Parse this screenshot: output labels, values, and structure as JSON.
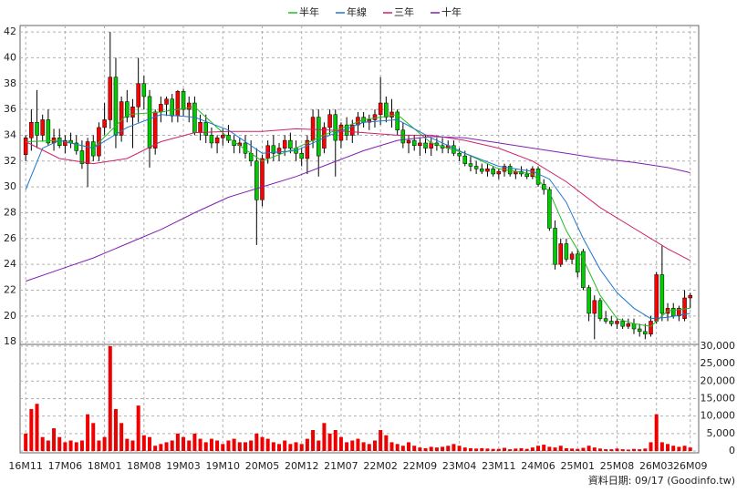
{
  "chart_data": {
    "type": "candlestick",
    "categories": [
      "16M11",
      null,
      null,
      null,
      null,
      null,
      null,
      "17M06",
      null,
      null,
      null,
      null,
      null,
      null,
      "18M01",
      null,
      null,
      null,
      null,
      null,
      null,
      "18M08",
      null,
      null,
      null,
      null,
      null,
      null,
      "19M03",
      null,
      null,
      null,
      null,
      null,
      null,
      "19M10",
      null,
      null,
      null,
      null,
      null,
      null,
      "20M05",
      null,
      null,
      null,
      null,
      null,
      null,
      "20M12",
      null,
      null,
      null,
      null,
      null,
      null,
      "21M07",
      null,
      null,
      null,
      null,
      null,
      null,
      "22M02",
      null,
      null,
      null,
      null,
      null,
      null,
      "22M09",
      null,
      null,
      null,
      null,
      null,
      null,
      "23M04",
      null,
      null,
      null,
      null,
      null,
      null,
      "23M11",
      null,
      null,
      null,
      null,
      null,
      null,
      "24M06",
      null,
      null,
      null,
      null,
      null,
      null,
      "25M01",
      null,
      null,
      null,
      null,
      null,
      null,
      "25M08",
      null,
      null,
      null,
      null,
      null,
      null,
      "26M03",
      null,
      null,
      null,
      null,
      null,
      "26M09"
    ],
    "open": [
      32.5,
      33.8,
      35,
      34,
      35.2,
      33.4,
      33.8,
      33.2,
      33.6,
      33.4,
      32.8,
      31.8,
      33.5,
      32.4,
      34.6,
      35.2,
      38.5,
      34,
      36.6,
      35.4,
      36.2,
      38,
      37,
      33,
      35.8,
      36.4,
      36.8,
      35.5,
      37.4,
      36,
      36.5,
      34.2,
      35,
      34,
      33.4,
      33.8,
      34,
      33.6,
      33.2,
      33.4,
      32.6,
      32,
      29,
      32.2,
      33.2,
      32.6,
      33,
      33.6,
      33,
      32.6,
      32.2,
      33.6,
      35.4,
      33,
      34.6,
      35.6,
      33.6,
      34.8,
      34,
      34.8,
      35.4,
      35,
      35.2,
      35.6,
      36.5,
      35.4,
      35.8,
      34.4,
      33.4,
      33.6,
      33.2,
      33.4,
      33,
      33.4,
      33.2,
      33,
      33.2,
      32.6,
      32.4,
      31.8,
      31.6,
      31.4,
      31.2,
      31.4,
      31,
      31.2,
      31.6,
      31,
      31.2,
      31,
      30.8,
      31.4,
      30.2,
      29.8,
      26.8,
      24,
      25.6,
      24.4,
      24.8,
      25,
      22.2,
      20.2,
      21.2,
      19.8,
      19.6,
      19.4,
      19.6,
      19.2,
      19.4,
      19,
      18.8,
      18.6,
      19.6,
      23.2,
      20.2,
      20.6,
      20,
      19.8,
      21.4
    ],
    "high": [
      34,
      36,
      37.5,
      35.6,
      36,
      34.5,
      34.5,
      34,
      34.2,
      34,
      33.6,
      33.8,
      34,
      35,
      36.5,
      42,
      40,
      37,
      37.5,
      36.8,
      40,
      38.6,
      37.5,
      36,
      37,
      37,
      37.2,
      37.5,
      37.6,
      37,
      37,
      35.6,
      35.6,
      34.6,
      34,
      34.5,
      34.8,
      34,
      33.8,
      34,
      33.6,
      33,
      32.5,
      33.6,
      34,
      33.4,
      34,
      34.2,
      33.6,
      33,
      34,
      36,
      36,
      35,
      36,
      36,
      35,
      35.4,
      35.2,
      35.8,
      35.8,
      35.6,
      36,
      38.5,
      37,
      36.8,
      36,
      35,
      34,
      34,
      33.8,
      34,
      33.8,
      33.8,
      33.8,
      33.6,
      33.6,
      33,
      32.8,
      32.4,
      32,
      31.8,
      31.8,
      31.6,
      31.4,
      31.8,
      31.8,
      31.4,
      31.6,
      31.4,
      31.6,
      31.6,
      30.6,
      30,
      27.4,
      26,
      26,
      25,
      25.2,
      25.2,
      22.4,
      21.6,
      21.4,
      20.4,
      20,
      19.8,
      19.8,
      19.8,
      19.8,
      19.4,
      19.4,
      20,
      23.4,
      25.5,
      21,
      21,
      20.8,
      22,
      21.8
    ],
    "low": [
      32,
      32.8,
      33,
      33.5,
      33.2,
      32.8,
      33,
      32.6,
      33,
      32.5,
      31.4,
      30,
      32,
      32,
      34,
      34.5,
      33,
      33.5,
      35,
      33,
      35,
      36,
      31.5,
      32.5,
      35,
      35.5,
      35,
      35,
      35.5,
      35,
      34,
      33.6,
      33.4,
      33,
      32.6,
      33.2,
      33.4,
      32.6,
      32.6,
      32.2,
      31.6,
      25.5,
      28.5,
      31.8,
      32,
      32,
      32.4,
      32.6,
      32,
      31.6,
      31,
      33,
      30.8,
      32.6,
      34,
      30.8,
      33,
      33.6,
      33.4,
      34,
      34.6,
      34.4,
      34.6,
      34.8,
      35,
      34.6,
      34,
      33,
      32.6,
      32.8,
      32.4,
      32.6,
      32.4,
      32.8,
      32.6,
      32.6,
      32.4,
      32,
      31.6,
      31.2,
      31,
      31,
      30.8,
      30.8,
      30.6,
      30.8,
      30.8,
      30.6,
      30.8,
      30.6,
      30.6,
      30,
      29.4,
      26.6,
      23.6,
      23.8,
      24.2,
      24,
      23,
      22,
      19.6,
      18.2,
      19.6,
      19.4,
      19.2,
      19,
      19,
      19,
      18.6,
      18.4,
      18.2,
      18.4,
      19.4,
      19.6,
      19.6,
      19.8,
      19.6,
      19.6,
      20.6
    ],
    "close": [
      33.8,
      35,
      34,
      35.2,
      33.4,
      33.8,
      33.2,
      33.6,
      33.4,
      32.8,
      31.8,
      33.5,
      32.4,
      34.6,
      35.2,
      38.5,
      34,
      36.6,
      35.4,
      36.2,
      38,
      37,
      33,
      35.8,
      36.4,
      36.8,
      35.5,
      37.4,
      36,
      36.5,
      34.2,
      35,
      34,
      33.4,
      33.8,
      34,
      33.6,
      33.2,
      33.4,
      32.6,
      32,
      29,
      32.2,
      33.2,
      32.6,
      33,
      33.6,
      33,
      32.6,
      32.2,
      33.6,
      35.4,
      32.4,
      34.6,
      35.6,
      33.6,
      34.8,
      34,
      34.8,
      35.4,
      35,
      35.2,
      35.6,
      36.5,
      35.4,
      35.8,
      34.4,
      33.4,
      33.6,
      33.2,
      33.4,
      33,
      33.4,
      33.2,
      33,
      33.2,
      32.6,
      32.4,
      31.8,
      31.6,
      31.4,
      31.2,
      31.4,
      31,
      31.2,
      31.6,
      31,
      31.2,
      31,
      30.8,
      31.4,
      30.2,
      29.8,
      26.8,
      24,
      25.6,
      24.4,
      24.8,
      23.4,
      22.2,
      20.2,
      21.2,
      19.8,
      19.6,
      19.4,
      19.6,
      19.2,
      19.4,
      19,
      18.8,
      18.6,
      19.6,
      23.2,
      20.2,
      20.6,
      20,
      20.6,
      21.4,
      21.6
    ],
    "volume": [
      5000,
      12000,
      13500,
      4000,
      3000,
      6500,
      4000,
      2500,
      3000,
      2500,
      3000,
      10500,
      8000,
      3000,
      4000,
      30000,
      12000,
      8000,
      3500,
      3000,
      13000,
      4500,
      4000,
      1500,
      2000,
      2500,
      3000,
      5000,
      4000,
      3000,
      5000,
      3500,
      2500,
      3500,
      3000,
      2000,
      3000,
      3500,
      2500,
      2500,
      3000,
      5000,
      4000,
      3500,
      2500,
      2000,
      3000,
      2000,
      2500,
      2000,
      3500,
      6000,
      3000,
      8000,
      5000,
      6000,
      4000,
      2500,
      3000,
      3500,
      2500,
      2000,
      3000,
      6000,
      4500,
      2500,
      2000,
      1500,
      2500,
      1500,
      1000,
      800,
      1200,
      1000,
      1200,
      1500,
      2000,
      1500,
      1000,
      800,
      700,
      800,
      700,
      600,
      600,
      900,
      500,
      700,
      800,
      600,
      1000,
      1500,
      1800,
      1200,
      1000,
      1500,
      800,
      700,
      600,
      900,
      1500,
      1000,
      700,
      500,
      500,
      700,
      500,
      400,
      600,
      500,
      700,
      2500,
      10500,
      2500,
      2000,
      1500,
      1200,
      1500,
      1000
    ],
    "up_color": "#ff0000",
    "down_color": "#00cc00",
    "volume_color": "#ee0000",
    "series": [
      {
        "name": "半年",
        "color": "#22bb22",
        "x": [
          0,
          6,
          12,
          18,
          24,
          30,
          36,
          42,
          48,
          54,
          60,
          66,
          72,
          78,
          84,
          90,
          93,
          96,
          99,
          102,
          105,
          108,
          111,
          114,
          118
        ],
        "values": [
          33.5,
          33.6,
          33,
          35.6,
          35.8,
          36.2,
          33.8,
          32,
          33,
          34.2,
          35.2,
          35.6,
          33.4,
          32.6,
          31.4,
          31,
          29.6,
          26.6,
          24.4,
          21.6,
          19.8,
          19.4,
          19.2,
          20.4,
          20.6
        ]
      },
      {
        "name": "年線",
        "color": "#1f77d0",
        "x": [
          0,
          3,
          6,
          12,
          18,
          24,
          30,
          36,
          42,
          48,
          54,
          60,
          66,
          72,
          78,
          84,
          90,
          93,
          96,
          99,
          102,
          105,
          108,
          111,
          114,
          118
        ],
        "values": [
          29.8,
          33,
          33.6,
          33,
          34.6,
          35.6,
          35.4,
          34.4,
          32.6,
          32.8,
          34,
          35,
          35.2,
          33.8,
          32.6,
          31.6,
          31.2,
          30.6,
          28.8,
          26,
          23.6,
          21.8,
          20.6,
          19.8,
          19.9,
          20.2
        ]
      },
      {
        "name": "三年",
        "color": "#d0206a",
        "x": [
          0,
          6,
          12,
          18,
          24,
          30,
          36,
          42,
          48,
          54,
          60,
          66,
          72,
          78,
          84,
          90,
          96,
          102,
          108,
          114,
          118
        ],
        "values": [
          33.5,
          32.2,
          31.8,
          32.2,
          33.5,
          34.2,
          34.3,
          34.3,
          34.5,
          34.4,
          34.2,
          34,
          34,
          33.6,
          33,
          32,
          30.4,
          28.4,
          26.8,
          25.2,
          24.3
        ]
      },
      {
        "name": "十年",
        "color": "#8020b0",
        "x": [
          0,
          6,
          12,
          18,
          24,
          30,
          36,
          42,
          48,
          54,
          60,
          66,
          72,
          78,
          84,
          90,
          96,
          102,
          108,
          114,
          118
        ],
        "values": [
          22.7,
          23.6,
          24.5,
          25.6,
          26.7,
          28,
          29.2,
          30,
          30.8,
          31.8,
          32.8,
          33.6,
          33.9,
          33.8,
          33.4,
          33,
          32.6,
          32.2,
          31.9,
          31.5,
          31.1
        ]
      }
    ],
    "ylim": [
      17.8,
      42.5
    ],
    "yticks": [
      18,
      20,
      22,
      24,
      26,
      28,
      30,
      32,
      34,
      36,
      38,
      40,
      42
    ],
    "y2lim": [
      0,
      30500
    ],
    "y2ticks": [
      0,
      {
        "value": 5000,
        "label": "5,000"
      },
      {
        "value": 10000,
        "label": "10,000"
      },
      {
        "value": 15000,
        "label": "15,000"
      },
      {
        "value": 20000,
        "label": "20,000"
      },
      {
        "value": 25000,
        "label": "25,000"
      },
      {
        "value": 30000,
        "label": "30,000"
      }
    ],
    "xlim": [
      -1,
      119.5
    ],
    "grid": true,
    "footnote": "資料日期: 09/17 (Goodinfo.tw)"
  }
}
